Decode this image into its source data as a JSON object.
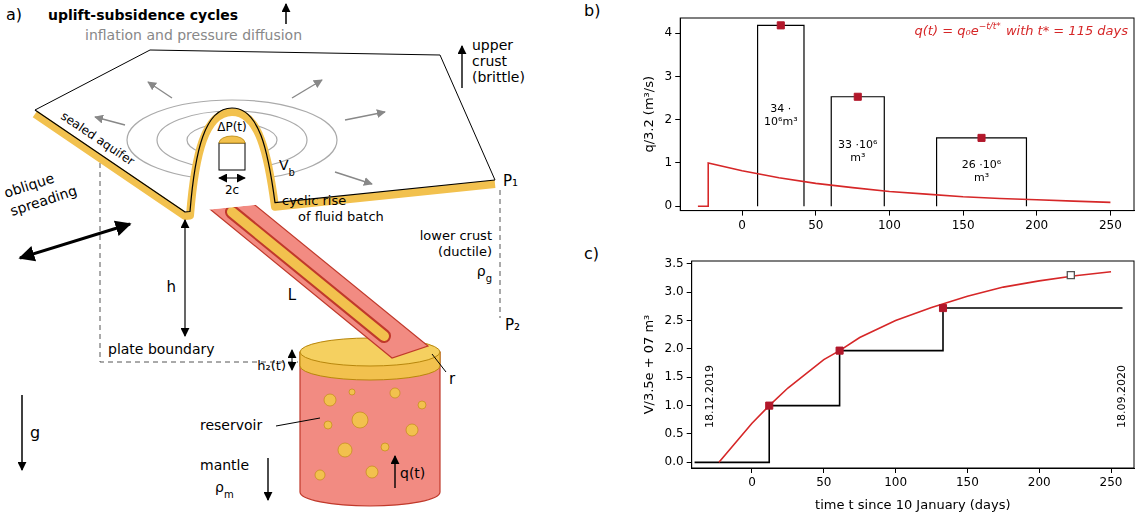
{
  "diagram": {
    "panel_label": "a)",
    "labels": {
      "cycles": "uplift-subsidence cycles",
      "inflation": "inflation and pressure diffusion",
      "upper_crust": [
        "upper",
        "crust",
        "(brittle)"
      ],
      "aquifer": "sealed aquifer",
      "pressure": "ΔP(t)",
      "batch_volume": {
        "text": "V",
        "sub": "b"
      },
      "width": "2c",
      "p1": "P₁",
      "spreading": [
        "oblique",
        "spreading"
      ],
      "rise": [
        "cyclic rise",
        "of fluid batch"
      ],
      "lower_crust": [
        "lower crust",
        "(ductile)"
      ],
      "lower_density": {
        "text": "ρ",
        "sub": "g"
      },
      "height": "h",
      "length": "L",
      "boundary": "plate boundary",
      "p2": "P₂",
      "radius": "r",
      "layer": "h₂(t)",
      "reservoir": "reservoir",
      "gravity": "g",
      "mantle": "mantle",
      "mantle_density": {
        "text": "ρ",
        "sub": "m"
      },
      "flux": "q(t)"
    }
  },
  "chart_data": [
    {
      "panel_label": "b)",
      "type": "bar",
      "y_label": "q/3.2 (m³/s)",
      "annotation": {
        "text": "q(t) = q₀e",
        "exponent": "−t/t*",
        "rest": " with t* = 115 days",
        "color": "#d62728"
      },
      "xlim": [
        -42,
        266
      ],
      "xticks": [
        0,
        50,
        100,
        150,
        200,
        250
      ],
      "ylim": [
        -0.1,
        4.35
      ],
      "yticks": [
        0,
        1,
        2,
        3,
        4
      ],
      "grid": false,
      "bars": {
        "start": [
          10.5,
          60.5,
          132
        ],
        "end": [
          42,
          96.5,
          193
        ],
        "values": [
          4.18,
          2.53,
          1.58
        ],
        "labels": [
          [
            "34 ·",
            "10⁶m³"
          ],
          [
            "33 ·10⁶",
            "m³"
          ],
          [
            "26 ·10⁶",
            "m³"
          ]
        ],
        "color": "#000000",
        "marker": "square",
        "marker_color": "#b2182b"
      },
      "series": [
        {
          "type": "line",
          "color": "#d62728",
          "x": [
            -30,
            -23,
            -23,
            0,
            25,
            50,
            75,
            100,
            125,
            150,
            175,
            200,
            225,
            250
          ],
          "values": [
            0,
            0,
            1.0,
            0.82,
            0.66,
            0.53,
            0.43,
            0.34,
            0.28,
            0.22,
            0.18,
            0.15,
            0.12,
            0.09
          ]
        }
      ]
    },
    {
      "panel_label": "c)",
      "type": "line",
      "x_label": "time t since 10 January (days)",
      "y_label": "V/3.5e + 07 m³",
      "xlim": [
        -42,
        266
      ],
      "xticks": [
        0,
        50,
        100,
        150,
        200,
        250
      ],
      "ylim": [
        -0.1,
        3.55
      ],
      "yticks": [
        {
          "value": 0,
          "label": "0.0"
        },
        {
          "value": 0.5,
          "label": "0.5"
        },
        {
          "value": 1,
          "label": "1.0"
        },
        {
          "value": 1.5,
          "label": "1.5"
        },
        {
          "value": 2,
          "label": "2.0"
        },
        {
          "value": 2.5,
          "label": "2.5"
        },
        {
          "value": 3,
          "label": "3.0"
        },
        {
          "value": 3.5,
          "label": "3.5"
        }
      ],
      "grid": false,
      "series": [
        {
          "type": "line",
          "color": "#d62728",
          "x": [
            -23,
            0,
            12,
            25,
            50,
            61,
            75,
            100,
            125,
            150,
            175,
            200,
            225,
            250
          ],
          "values": [
            0,
            0.69,
            1.0,
            1.31,
            1.81,
            1.97,
            2.2,
            2.5,
            2.73,
            2.93,
            3.09,
            3.2,
            3.29,
            3.36
          ]
        },
        {
          "type": "line",
          "line_style": "steps",
          "color": "#000000",
          "x": [
            -40,
            12,
            61,
            133,
            258
          ],
          "values": [
            0,
            1.0,
            1.97,
            2.72,
            2.72
          ]
        },
        {
          "type": "scatter",
          "marker": "square",
          "color": "#b2182b",
          "x": [
            12,
            61,
            133
          ],
          "values": [
            1.0,
            1.97,
            2.72
          ]
        },
        {
          "type": "scatter",
          "marker": "open_square",
          "color": "#555555",
          "x": [
            222
          ],
          "values": [
            3.3
          ]
        }
      ],
      "dates": [
        {
          "x": -23,
          "label": "18.12.2019"
        },
        {
          "x": 252,
          "label": "18.09.2020"
        }
      ]
    }
  ]
}
